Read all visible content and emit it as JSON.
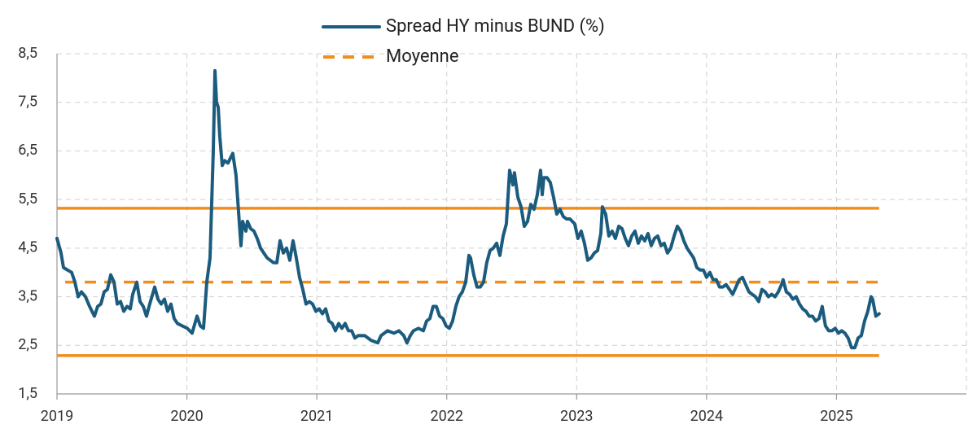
{
  "chart_data": {
    "type": "line",
    "xlim": [
      2019,
      2026
    ],
    "xticks": [
      2019,
      2020,
      2021,
      2022,
      2023,
      2024,
      2025
    ],
    "ylim": [
      1.5,
      8.5
    ],
    "yticks": [
      {
        "value": 1.5,
        "label": "1,5"
      },
      {
        "value": 2.5,
        "label": "2,5"
      },
      {
        "value": 3.5,
        "label": "3,5"
      },
      {
        "value": 4.5,
        "label": "4,5"
      },
      {
        "value": 5.5,
        "label": "5,5"
      },
      {
        "value": 6.5,
        "label": "6,5"
      },
      {
        "value": 7.5,
        "label": "7,5"
      },
      {
        "value": 8.5,
        "label": "8,5"
      }
    ],
    "grid": true,
    "legend": "top",
    "series": [
      {
        "name": "Spread HY minus BUND (%)",
        "color": "#1b5b7e",
        "line_style": "solid",
        "x": [
          2019.0,
          2019.031,
          2019.05,
          2019.081,
          2019.113,
          2019.138,
          2019.163,
          2019.188,
          2019.219,
          2019.251,
          2019.288,
          2019.313,
          2019.338,
          2019.363,
          2019.388,
          2019.414,
          2019.439,
          2019.464,
          2019.489,
          2019.514,
          2019.539,
          2019.564,
          2019.583,
          2019.614,
          2019.639,
          2019.664,
          2019.689,
          2019.714,
          2019.752,
          2019.777,
          2019.802,
          2019.827,
          2019.852,
          2019.877,
          2019.902,
          2019.927,
          2019.965,
          2020.003,
          2020.04,
          2020.078,
          2020.103,
          2020.128,
          2020.153,
          2020.178,
          2020.203,
          2020.216,
          2020.228,
          2020.241,
          2020.253,
          2020.272,
          2020.291,
          2020.316,
          2020.353,
          2020.378,
          2020.404,
          2020.416,
          2020.429,
          2020.454,
          2020.466,
          2020.491,
          2020.516,
          2020.541,
          2020.567,
          2020.592,
          2020.617,
          2020.642,
          2020.667,
          2020.692,
          2020.717,
          2020.742,
          2020.767,
          2020.792,
          2020.817,
          2020.842,
          2020.867,
          2020.892,
          2020.917,
          2020.942,
          2020.967,
          2020.993,
          2021.018,
          2021.043,
          2021.068,
          2021.093,
          2021.118,
          2021.143,
          2021.168,
          2021.193,
          2021.218,
          2021.243,
          2021.268,
          2021.293,
          2021.318,
          2021.369,
          2021.419,
          2021.469,
          2021.494,
          2021.544,
          2021.594,
          2021.632,
          2021.669,
          2021.694,
          2021.719,
          2021.744,
          2021.782,
          2021.82,
          2021.845,
          2021.87,
          2021.895,
          2021.92,
          2021.945,
          2021.97,
          2021.995,
          2022.02,
          2022.045,
          2022.07,
          2022.095,
          2022.12,
          2022.146,
          2022.171,
          2022.183,
          2022.208,
          2022.233,
          2022.258,
          2022.283,
          2022.308,
          2022.333,
          2022.358,
          2022.384,
          2022.409,
          2022.434,
          2022.459,
          2022.484,
          2022.509,
          2022.521,
          2022.547,
          2022.572,
          2022.597,
          2022.622,
          2022.647,
          2022.672,
          2022.697,
          2022.722,
          2022.735,
          2022.747,
          2022.772,
          2022.797,
          2022.822,
          2022.847,
          2022.872,
          2022.897,
          2022.922,
          2022.948,
          2022.985,
          2023.01,
          2023.035,
          2023.06,
          2023.085,
          2023.111,
          2023.136,
          2023.161,
          2023.186,
          2023.198,
          2023.223,
          2023.248,
          2023.273,
          2023.298,
          2023.324,
          2023.349,
          2023.374,
          2023.399,
          2023.424,
          2023.449,
          2023.474,
          2023.499,
          2023.524,
          2023.549,
          2023.574,
          2023.599,
          2023.624,
          2023.649,
          2023.674,
          2023.699,
          2023.724,
          2023.75,
          2023.775,
          2023.8,
          2023.825,
          2023.85,
          2023.875,
          2023.9,
          2023.925,
          2023.95,
          2023.975,
          2024.0,
          2024.025,
          2024.05,
          2024.075,
          2024.1,
          2024.125,
          2024.15,
          2024.176,
          2024.201,
          2024.226,
          2024.251,
          2024.276,
          2024.301,
          2024.326,
          2024.351,
          2024.376,
          2024.401,
          2024.426,
          2024.451,
          2024.476,
          2024.501,
          2024.527,
          2024.552,
          2024.577,
          2024.589,
          2024.614,
          2024.639,
          2024.664,
          2024.69,
          2024.715,
          2024.74,
          2024.765,
          2024.79,
          2024.815,
          2024.84,
          2024.865,
          2024.89,
          2024.915,
          2024.94,
          2024.965,
          2024.99,
          2025.015,
          2025.04,
          2025.065,
          2025.09,
          2025.116,
          2025.141,
          2025.166,
          2025.191,
          2025.216,
          2025.241,
          2025.266,
          2025.278,
          2025.303,
          2025.328
        ],
        "values": [
          4.7,
          4.4,
          4.1,
          4.05,
          4.0,
          3.8,
          3.5,
          3.6,
          3.5,
          3.3,
          3.1,
          3.3,
          3.35,
          3.6,
          3.65,
          3.95,
          3.8,
          3.35,
          3.4,
          3.2,
          3.3,
          3.25,
          3.55,
          3.8,
          3.4,
          3.3,
          3.1,
          3.35,
          3.7,
          3.45,
          3.35,
          3.45,
          3.2,
          3.35,
          3.05,
          2.95,
          2.9,
          2.85,
          2.75,
          3.1,
          2.9,
          2.85,
          3.8,
          4.3,
          6.5,
          8.15,
          7.5,
          7.4,
          6.8,
          6.2,
          6.3,
          6.25,
          6.45,
          6.0,
          5.0,
          4.55,
          5.05,
          4.85,
          5.05,
          4.9,
          4.85,
          4.7,
          4.5,
          4.4,
          4.3,
          4.25,
          4.2,
          4.2,
          4.65,
          4.4,
          4.5,
          4.25,
          4.65,
          4.3,
          3.9,
          3.65,
          3.35,
          3.4,
          3.35,
          3.2,
          3.25,
          3.15,
          3.25,
          3.0,
          2.95,
          2.8,
          2.95,
          2.85,
          2.95,
          2.8,
          2.8,
          2.65,
          2.7,
          2.7,
          2.6,
          2.55,
          2.7,
          2.8,
          2.75,
          2.8,
          2.7,
          2.55,
          2.7,
          2.8,
          2.85,
          2.8,
          3.0,
          3.05,
          3.3,
          3.3,
          3.1,
          3.05,
          2.9,
          2.85,
          3.0,
          3.3,
          3.5,
          3.6,
          3.8,
          4.35,
          4.3,
          3.95,
          3.7,
          3.7,
          3.8,
          4.2,
          4.45,
          4.5,
          4.6,
          4.35,
          4.75,
          5.0,
          6.1,
          5.8,
          6.05,
          5.55,
          5.35,
          4.95,
          5.05,
          5.4,
          5.3,
          5.6,
          6.1,
          5.6,
          5.95,
          5.95,
          5.85,
          5.55,
          5.2,
          5.3,
          5.15,
          5.1,
          5.1,
          5.0,
          4.7,
          4.85,
          4.6,
          4.25,
          4.3,
          4.4,
          4.45,
          4.8,
          5.35,
          5.2,
          4.75,
          4.85,
          4.7,
          4.95,
          4.9,
          4.7,
          4.55,
          4.75,
          4.85,
          4.6,
          4.75,
          4.65,
          4.8,
          4.55,
          4.7,
          4.75,
          4.55,
          4.6,
          4.4,
          4.5,
          4.75,
          4.95,
          4.85,
          4.65,
          4.5,
          4.4,
          4.3,
          4.1,
          4.05,
          4.05,
          3.9,
          4.0,
          3.85,
          3.85,
          3.7,
          3.7,
          3.75,
          3.65,
          3.55,
          3.7,
          3.85,
          3.9,
          3.75,
          3.6,
          3.55,
          3.5,
          3.4,
          3.65,
          3.6,
          3.5,
          3.55,
          3.5,
          3.6,
          3.75,
          3.85,
          3.6,
          3.55,
          3.45,
          3.5,
          3.35,
          3.25,
          3.2,
          3.1,
          3.1,
          3.0,
          3.05,
          3.3,
          2.9,
          2.8,
          2.8,
          2.85,
          2.75,
          2.8,
          2.75,
          2.65,
          2.45,
          2.45,
          2.65,
          2.7,
          3.0,
          3.2,
          3.5,
          3.45,
          3.1,
          3.15
        ]
      },
      {
        "name": "Moyenne",
        "color": "#f28c1c",
        "line_style": "dashed",
        "x": [
          2019.063,
          2025.328
        ],
        "values": [
          3.8,
          3.8
        ]
      },
      {
        "color": "#f28c1c",
        "line_style": "solid",
        "x": [
          2019.0,
          2025.328
        ],
        "values": [
          5.32,
          5.32
        ]
      },
      {
        "color": "#f28c1c",
        "line_style": "solid",
        "x": [
          2019.0,
          2025.328
        ],
        "values": [
          2.29,
          2.29
        ]
      }
    ]
  }
}
